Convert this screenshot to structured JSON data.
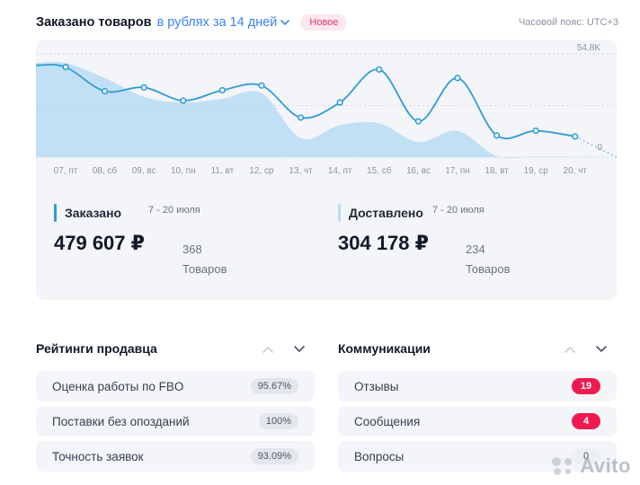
{
  "header": {
    "title": "Заказано товаров",
    "range": "в рублях за 14 дней",
    "badge": "Новое",
    "timezone": "Часовой пояс: UTC+3"
  },
  "chart_data": {
    "type": "area",
    "x": [
      "07, пт",
      "08, сб",
      "09, вс",
      "10, пн",
      "11, вт",
      "12, ср",
      "13, чт",
      "14, пт",
      "15, сб",
      "16, вс",
      "17, пн",
      "18, вт",
      "19, ср",
      "20, чт"
    ],
    "y_max_label": "54.8K",
    "y_zero_label": "0",
    "ylim": [
      0,
      54800
    ],
    "grid": true,
    "series": [
      {
        "name": "Заказано",
        "style": "line",
        "color": "#2f9bd6",
        "values": [
          47800,
          35000,
          37000,
          30000,
          35500,
          38000,
          21000,
          29000,
          46500,
          19000,
          42000,
          11500,
          14000,
          11000
        ]
      },
      {
        "name": "Доставлено",
        "style": "area",
        "color": "#b9dcf4",
        "values": [
          50000,
          42000,
          32000,
          29000,
          31000,
          34000,
          10000,
          17000,
          18000,
          8000,
          14000,
          600,
          300,
          200
        ]
      }
    ]
  },
  "stats": {
    "ordered": {
      "label": "Заказано",
      "dates": "7 - 20 июля",
      "amount": "479 607 ₽",
      "count": "368",
      "unit": "Товаров",
      "color": "#2f9bd6"
    },
    "delivered": {
      "label": "Доставлено",
      "dates": "7 - 20 июля",
      "amount": "304 178 ₽",
      "count": "234",
      "unit": "Товаров",
      "color": "#b9dcf4"
    }
  },
  "ratings": {
    "title": "Рейтинги продавца",
    "items": [
      {
        "label": "Оценка работы по FBO",
        "value": "95.67%"
      },
      {
        "label": "Поставки без опозданий",
        "value": "100%"
      },
      {
        "label": "Точность заявок",
        "value": "93.09%"
      }
    ]
  },
  "communications": {
    "title": "Коммуникации",
    "items": [
      {
        "label": "Отзывы",
        "value": "19"
      },
      {
        "label": "Сообщения",
        "value": "4"
      },
      {
        "label": "Вопросы",
        "value": "0"
      }
    ]
  },
  "watermark": {
    "text": "Avito",
    "icon": "avito-logo-icon"
  }
}
